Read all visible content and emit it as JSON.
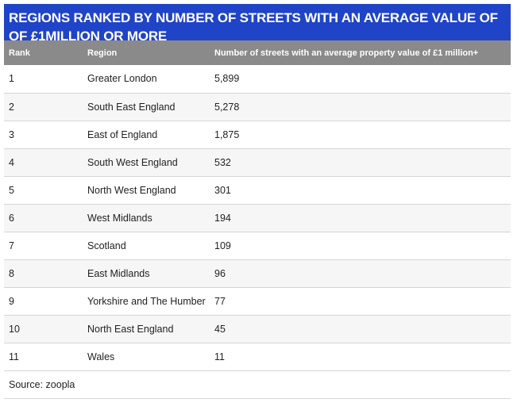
{
  "title": "REGIONS RANKED BY NUMBER OF STREETS WITH AN AVERAGE VALUE OF OF £1MILLION OR MORE",
  "headers": {
    "rank": "Rank",
    "region": "Region",
    "value": "Number of streets with an average property value of £1 million+"
  },
  "rows": [
    {
      "rank": "1",
      "region": "Greater London",
      "value": "5,899"
    },
    {
      "rank": "2",
      "region": "South East England",
      "value": "5,278"
    },
    {
      "rank": "3",
      "region": "East of England",
      "value": "1,875"
    },
    {
      "rank": "4",
      "region": "South West England",
      "value": "532"
    },
    {
      "rank": "5",
      "region": "North West England",
      "value": "301"
    },
    {
      "rank": "6",
      "region": "West Midlands",
      "value": "194"
    },
    {
      "rank": "7",
      "region": "Scotland",
      "value": "109"
    },
    {
      "rank": "8",
      "region": "East Midlands",
      "value": "96"
    },
    {
      "rank": "9",
      "region": "Yorkshire and The Humber",
      "value": "77"
    },
    {
      "rank": "10",
      "region": "North East England",
      "value": "45"
    },
    {
      "rank": "11",
      "region": "Wales",
      "value": "11"
    }
  ],
  "source": "Source: zoopla",
  "colors": {
    "title_background": "#1f44c8",
    "header_background": "#8a8a8a"
  }
}
